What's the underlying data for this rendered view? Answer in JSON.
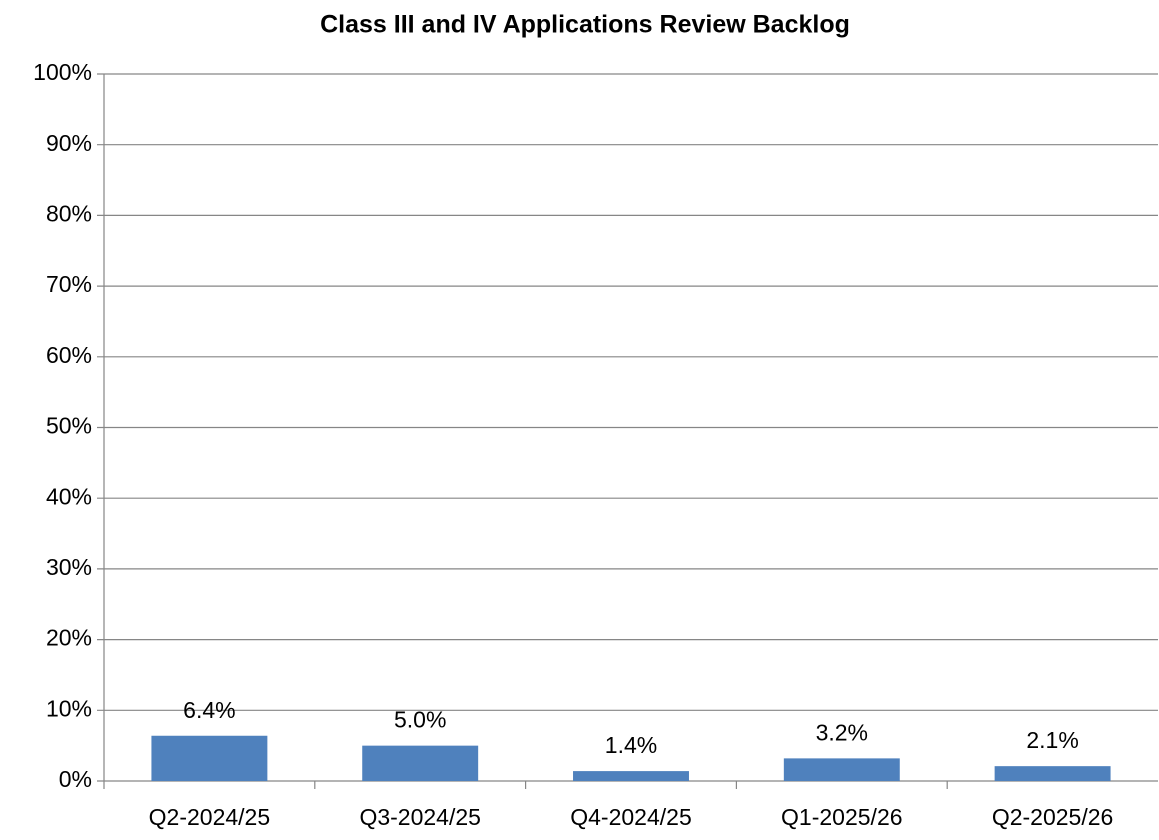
{
  "chart_data": {
    "type": "bar",
    "title": "Class III and IV Applications Review Backlog",
    "categories": [
      "Q2-2024/25",
      "Q3-2024/25",
      "Q4-2024/25",
      "Q1-2025/26",
      "Q2-2025/26"
    ],
    "values": [
      6.4,
      5.0,
      1.4,
      3.2,
      2.1
    ],
    "value_labels": [
      "6.4%",
      "5.0%",
      "1.4%",
      "3.2%",
      "2.1%"
    ],
    "color": "#4f81bd",
    "ylim": [
      0,
      100
    ],
    "yticks": [
      {
        "value": 0,
        "label": "0%"
      },
      {
        "value": 10,
        "label": "10%"
      },
      {
        "value": 20,
        "label": "20%"
      },
      {
        "value": 30,
        "label": "30%"
      },
      {
        "value": 40,
        "label": "40%"
      },
      {
        "value": 50,
        "label": "50%"
      },
      {
        "value": 60,
        "label": "60%"
      },
      {
        "value": 70,
        "label": "70%"
      },
      {
        "value": 80,
        "label": "80%"
      },
      {
        "value": 90,
        "label": "90%"
      },
      {
        "value": 100,
        "label": "100%"
      }
    ],
    "grid": true
  }
}
